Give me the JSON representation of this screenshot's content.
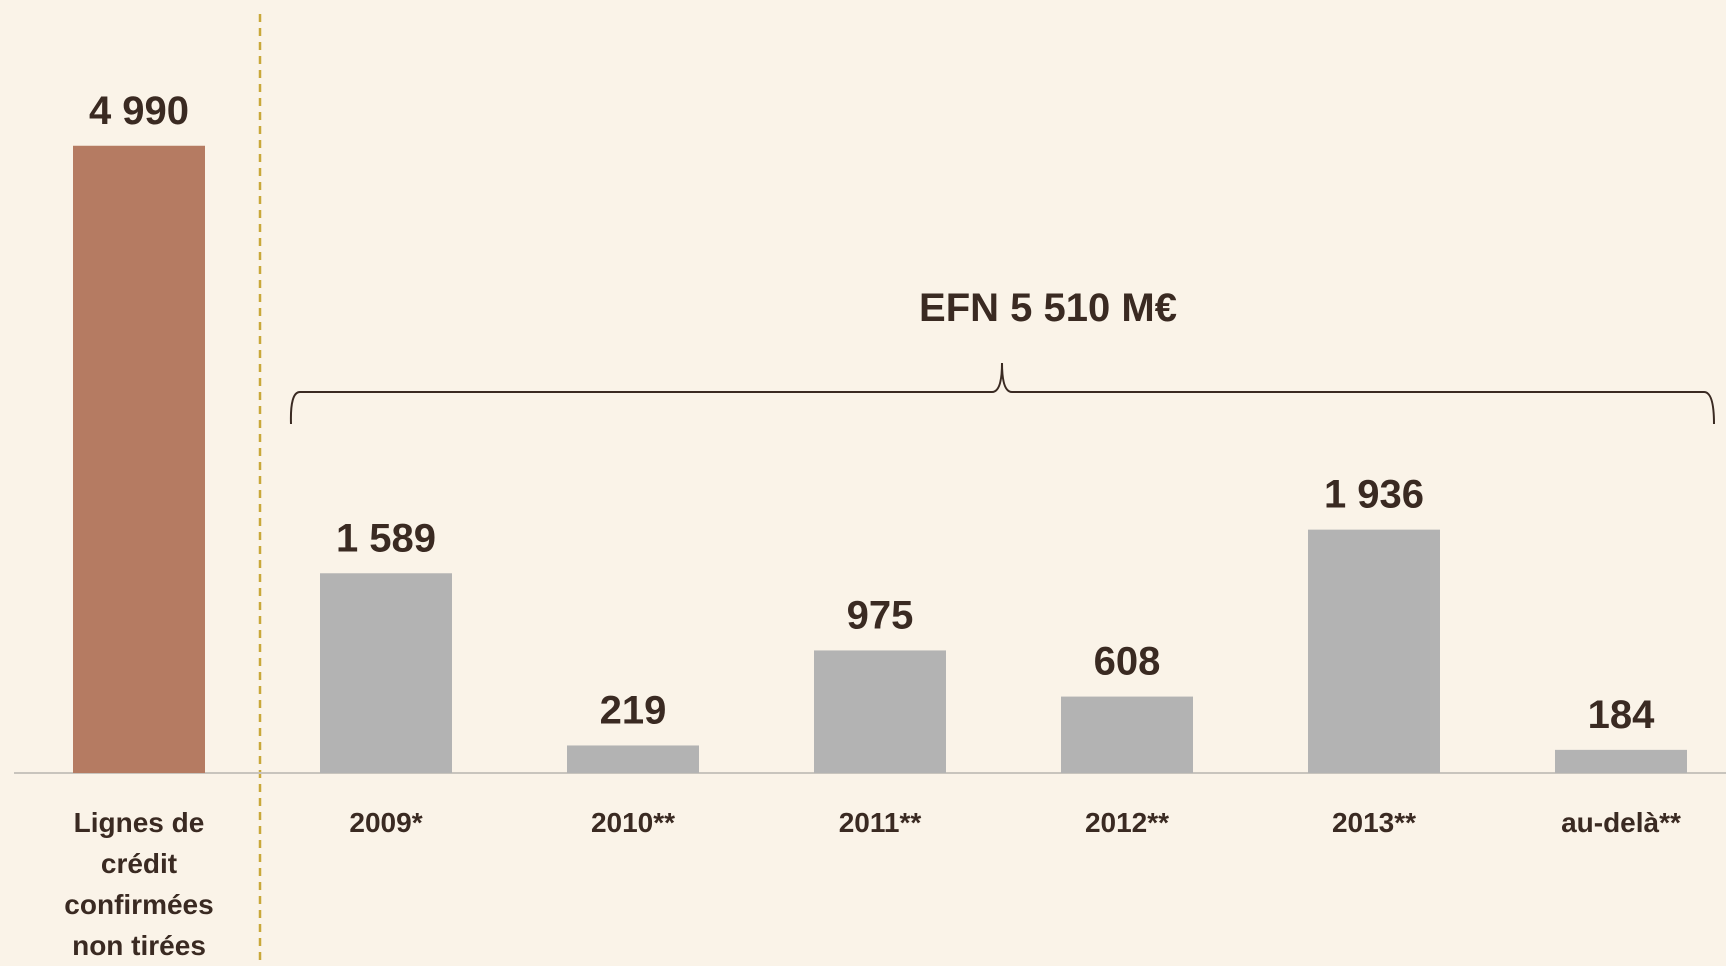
{
  "chart_data": {
    "type": "bar",
    "categories": [
      "Lignes de crédit confirmées non tirées",
      "2009*",
      "2010**",
      "2011**",
      "2012**",
      "2013**",
      "au-delà**"
    ],
    "values": [
      4990,
      1589,
      219,
      975,
      608,
      1936,
      184
    ],
    "value_labels": [
      "4 990",
      "1 589",
      "219",
      "975",
      "608",
      "1 936",
      "184"
    ],
    "colors": [
      "#b57b62",
      "#b3b3b3",
      "#b3b3b3",
      "#b3b3b3",
      "#b3b3b3",
      "#b3b3b3",
      "#b3b3b3"
    ],
    "annotation": "EFN 5 510 M€"
  }
}
